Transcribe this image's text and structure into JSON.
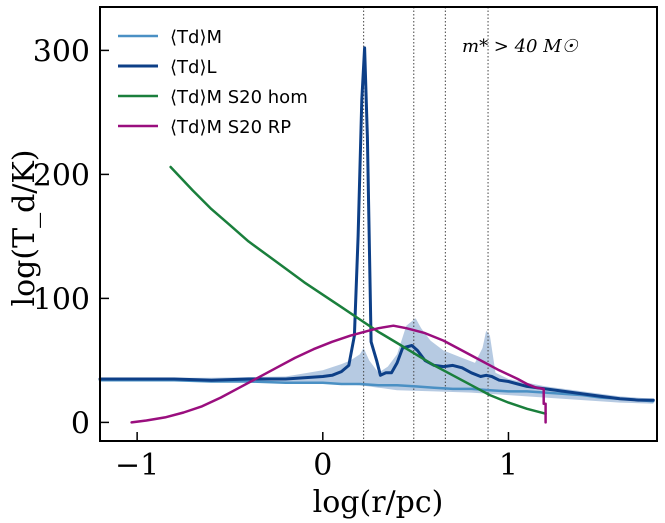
{
  "chart_data": {
    "type": "line",
    "title": "",
    "xlabel": "log(r/pc)",
    "ylabel": "log(T_d/K)",
    "xlim": [
      -1.2,
      1.8
    ],
    "ylim": [
      -15,
      335
    ],
    "xticks": [
      -1,
      0,
      1
    ],
    "yticks": [
      0,
      100,
      200,
      300
    ],
    "xtick_labels": [
      "−1",
      "0",
      "1"
    ],
    "ytick_labels": [
      "0",
      "100",
      "200",
      "300"
    ],
    "annotation": "m* > 40 M☉",
    "legend_position": "top-left",
    "vlines": [
      0.22,
      0.49,
      0.66,
      0.89
    ],
    "series": [
      {
        "name": "⟨Td⟩M",
        "color": "#4a90c4",
        "width": 2.5,
        "points": [
          [
            -1.2,
            34
          ],
          [
            -1.0,
            34
          ],
          [
            -0.8,
            34
          ],
          [
            -0.6,
            33
          ],
          [
            -0.4,
            33
          ],
          [
            -0.2,
            32
          ],
          [
            0.0,
            32
          ],
          [
            0.1,
            31
          ],
          [
            0.2,
            31
          ],
          [
            0.3,
            30
          ],
          [
            0.4,
            30
          ],
          [
            0.5,
            29
          ],
          [
            0.6,
            28
          ],
          [
            0.7,
            27
          ],
          [
            0.8,
            27
          ],
          [
            0.9,
            26
          ],
          [
            1.0,
            25
          ],
          [
            1.1,
            25
          ],
          [
            1.2,
            24
          ],
          [
            1.3,
            23
          ],
          [
            1.4,
            22
          ],
          [
            1.5,
            20
          ],
          [
            1.6,
            19
          ],
          [
            1.7,
            18
          ],
          [
            1.78,
            17
          ]
        ]
      },
      {
        "name": "⟨Td⟩L",
        "color": "#0d3f87",
        "width": 3,
        "points": [
          [
            -1.2,
            35
          ],
          [
            -1.0,
            35
          ],
          [
            -0.8,
            35
          ],
          [
            -0.6,
            34
          ],
          [
            -0.4,
            35
          ],
          [
            -0.2,
            35
          ],
          [
            -0.1,
            36
          ],
          [
            0.0,
            37
          ],
          [
            0.05,
            38
          ],
          [
            0.1,
            41
          ],
          [
            0.14,
            46
          ],
          [
            0.17,
            70
          ],
          [
            0.19,
            150
          ],
          [
            0.21,
            260
          ],
          [
            0.225,
            302
          ],
          [
            0.24,
            230
          ],
          [
            0.26,
            65
          ],
          [
            0.29,
            50
          ],
          [
            0.31,
            38
          ],
          [
            0.34,
            40
          ],
          [
            0.37,
            40
          ],
          [
            0.4,
            48
          ],
          [
            0.43,
            60
          ],
          [
            0.48,
            62
          ],
          [
            0.51,
            58
          ],
          [
            0.55,
            50
          ],
          [
            0.6,
            46
          ],
          [
            0.65,
            45
          ],
          [
            0.7,
            46
          ],
          [
            0.75,
            44
          ],
          [
            0.8,
            40
          ],
          [
            0.85,
            37
          ],
          [
            0.88,
            38
          ],
          [
            0.91,
            37
          ],
          [
            0.95,
            34
          ],
          [
            1.0,
            33
          ],
          [
            1.05,
            31
          ],
          [
            1.1,
            29
          ],
          [
            1.15,
            28
          ],
          [
            1.2,
            27
          ],
          [
            1.3,
            25
          ],
          [
            1.4,
            23
          ],
          [
            1.5,
            21
          ],
          [
            1.6,
            19
          ],
          [
            1.7,
            18
          ],
          [
            1.78,
            18
          ]
        ]
      },
      {
        "name": "⟨Td⟩M S20 hom",
        "color": "#1a7f3c",
        "width": 2.5,
        "points": [
          [
            -0.82,
            206
          ],
          [
            -0.7,
            187
          ],
          [
            -0.6,
            172
          ],
          [
            -0.5,
            159
          ],
          [
            -0.4,
            146
          ],
          [
            -0.3,
            135
          ],
          [
            -0.2,
            124
          ],
          [
            -0.1,
            113
          ],
          [
            0.0,
            103
          ],
          [
            0.1,
            93
          ],
          [
            0.2,
            83
          ],
          [
            0.3,
            73
          ],
          [
            0.4,
            64
          ],
          [
            0.5,
            55
          ],
          [
            0.6,
            46
          ],
          [
            0.7,
            38
          ],
          [
            0.8,
            30
          ],
          [
            0.9,
            22
          ],
          [
            1.0,
            16
          ],
          [
            1.1,
            11
          ],
          [
            1.2,
            7
          ]
        ]
      },
      {
        "name": "⟨Td⟩M S20 RP",
        "color": "#9a0e7e",
        "width": 2.5,
        "points": [
          [
            -1.03,
            0
          ],
          [
            -0.95,
            1.5
          ],
          [
            -0.85,
            4
          ],
          [
            -0.75,
            8
          ],
          [
            -0.65,
            13
          ],
          [
            -0.55,
            20
          ],
          [
            -0.45,
            28
          ],
          [
            -0.35,
            36
          ],
          [
            -0.25,
            44
          ],
          [
            -0.15,
            52
          ],
          [
            -0.05,
            59
          ],
          [
            0.05,
            65
          ],
          [
            0.15,
            70
          ],
          [
            0.25,
            74
          ],
          [
            0.3,
            76
          ],
          [
            0.38,
            78
          ],
          [
            0.45,
            76
          ],
          [
            0.55,
            72
          ],
          [
            0.65,
            66
          ],
          [
            0.75,
            58
          ],
          [
            0.85,
            50
          ],
          [
            0.95,
            42
          ],
          [
            1.05,
            35
          ],
          [
            1.1,
            31
          ],
          [
            1.15,
            28
          ],
          [
            1.19,
            27
          ],
          [
            1.19,
            15
          ],
          [
            1.2,
            15
          ],
          [
            1.2,
            0
          ]
        ]
      }
    ],
    "shaded_band": {
      "color": "#9db8d8",
      "upper": [
        [
          -1.2,
          36
        ],
        [
          -0.6,
          36
        ],
        [
          -0.2,
          37
        ],
        [
          0.0,
          42
        ],
        [
          0.1,
          47
        ],
        [
          0.15,
          50
        ],
        [
          0.2,
          55
        ],
        [
          0.22,
          60
        ],
        [
          0.25,
          50
        ],
        [
          0.3,
          40
        ],
        [
          0.35,
          45
        ],
        [
          0.4,
          55
        ],
        [
          0.45,
          78
        ],
        [
          0.5,
          84
        ],
        [
          0.53,
          76
        ],
        [
          0.58,
          66
        ],
        [
          0.65,
          58
        ],
        [
          0.75,
          52
        ],
        [
          0.82,
          48
        ],
        [
          0.86,
          60
        ],
        [
          0.88,
          74
        ],
        [
          0.9,
          70
        ],
        [
          0.93,
          40
        ],
        [
          1.0,
          35
        ],
        [
          1.1,
          32
        ],
        [
          1.2,
          29
        ],
        [
          1.4,
          25
        ],
        [
          1.6,
          21
        ],
        [
          1.78,
          19
        ]
      ],
      "lower": [
        [
          1.78,
          15
        ],
        [
          1.6,
          16
        ],
        [
          1.4,
          18
        ],
        [
          1.2,
          20
        ],
        [
          1.0,
          22
        ],
        [
          0.9,
          23
        ],
        [
          0.8,
          24
        ],
        [
          0.6,
          25
        ],
        [
          0.4,
          26
        ],
        [
          0.3,
          28
        ],
        [
          0.2,
          30
        ],
        [
          0.1,
          31
        ],
        [
          0.0,
          32
        ],
        [
          -0.2,
          33
        ],
        [
          -0.6,
          33
        ],
        [
          -1.2,
          33
        ]
      ]
    }
  }
}
